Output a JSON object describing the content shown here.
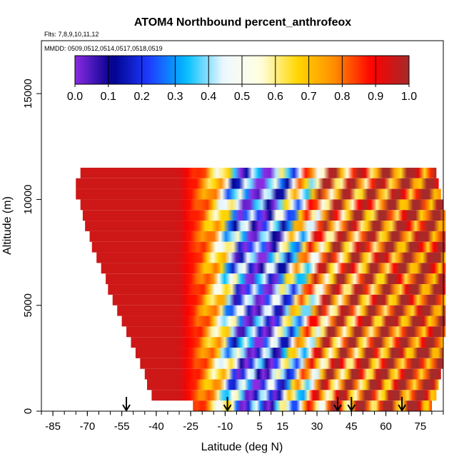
{
  "chart_data": {
    "type": "heatmap",
    "title": "ATOM4 Northbound percent_anthrofeox",
    "subtitle_flights": "Flts: 7,8,9,10,11,12",
    "subtitle_dates": "MMDD: 0509,0512,0514,0517,0518,0519",
    "xlabel": "Latitude (deg N)",
    "ylabel": "Altitude (m)",
    "xlim": [
      -90,
      85
    ],
    "ylim": [
      0,
      17500
    ],
    "x_ticks": [
      -85,
      -70,
      -55,
      -40,
      -25,
      -10,
      5,
      15,
      30,
      45,
      60,
      75
    ],
    "x_tick_labels": [
      "-85",
      "-70",
      "-55",
      "-40",
      "-25",
      "-10",
      "5",
      "15",
      "30",
      "45",
      "60",
      "75"
    ],
    "y_ticks": [
      0,
      5000,
      10000,
      15000
    ],
    "y_tick_labels": [
      "0",
      "5000",
      "10000",
      "15000"
    ],
    "colorbar": {
      "min": 0.0,
      "max": 1.0,
      "ticks": [
        0.0,
        0.1,
        0.2,
        0.3,
        0.4,
        0.5,
        0.6,
        0.7,
        0.8,
        0.9,
        1.0
      ],
      "tick_labels": [
        "0.0",
        "0.1",
        "0.2",
        "0.3",
        "0.4",
        "0.5",
        "0.6",
        "0.7",
        "0.8",
        "0.9",
        "1.0"
      ],
      "colors": [
        "#8a2be2",
        "#00008b",
        "#1e3cff",
        "#00bfff",
        "#f0f8ff",
        "#ffffe0",
        "#ffd700",
        "#ff8c00",
        "#ff0000",
        "#a52a2a"
      ]
    },
    "profile_markers_lat": [
      -53,
      -9,
      39,
      45,
      67
    ],
    "altitude_bins": [
      {
        "alt": 11250,
        "lat_start": -73,
        "lat_end": 82
      },
      {
        "alt": 10750,
        "lat_start": -75,
        "lat_end": 83
      },
      {
        "alt": 10250,
        "lat_start": -75,
        "lat_end": 84
      },
      {
        "alt": 9750,
        "lat_start": -73,
        "lat_end": 85
      },
      {
        "alt": 9250,
        "lat_start": -72,
        "lat_end": 86
      },
      {
        "alt": 8750,
        "lat_start": -71,
        "lat_end": 86
      },
      {
        "alt": 8250,
        "lat_start": -69,
        "lat_end": 86
      },
      {
        "alt": 7750,
        "lat_start": -68,
        "lat_end": 86
      },
      {
        "alt": 7250,
        "lat_start": -66,
        "lat_end": 86
      },
      {
        "alt": 6750,
        "lat_start": -64,
        "lat_end": 86
      },
      {
        "alt": 6250,
        "lat_start": -62,
        "lat_end": 86
      },
      {
        "alt": 5750,
        "lat_start": -61,
        "lat_end": 86
      },
      {
        "alt": 5250,
        "lat_start": -59,
        "lat_end": 86
      },
      {
        "alt": 4750,
        "lat_start": -57,
        "lat_end": 86
      },
      {
        "alt": 4250,
        "lat_start": -55,
        "lat_end": 86
      },
      {
        "alt": 3750,
        "lat_start": -53,
        "lat_end": 86
      },
      {
        "alt": 3250,
        "lat_start": -51,
        "lat_end": 85
      },
      {
        "alt": 2750,
        "lat_start": -49,
        "lat_end": 85
      },
      {
        "alt": 2250,
        "lat_start": -47,
        "lat_end": 85
      },
      {
        "alt": 1750,
        "lat_start": -45,
        "lat_end": 84
      },
      {
        "alt": 1250,
        "lat_start": -44,
        "lat_end": 83
      },
      {
        "alt": 750,
        "lat_start": -42,
        "lat_end": 82
      },
      {
        "alt": 250,
        "lat_start": -24,
        "lat_end": 80
      }
    ],
    "bin_height_m": 500,
    "value_profile": [
      {
        "lat": -90,
        "value": 0.95
      },
      {
        "lat": -30,
        "value": 0.95
      },
      {
        "lat": -20,
        "value": 0.8
      },
      {
        "lat": -12,
        "value": 0.6
      },
      {
        "lat": -5,
        "value": 0.3
      },
      {
        "lat": 5,
        "value": 0.15
      },
      {
        "lat": 15,
        "value": 0.35
      },
      {
        "lat": 25,
        "value": 0.6
      },
      {
        "lat": 35,
        "value": 0.8
      },
      {
        "lat": 50,
        "value": 0.85
      },
      {
        "lat": 65,
        "value": 0.9
      },
      {
        "lat": 85,
        "value": 0.95
      }
    ]
  }
}
